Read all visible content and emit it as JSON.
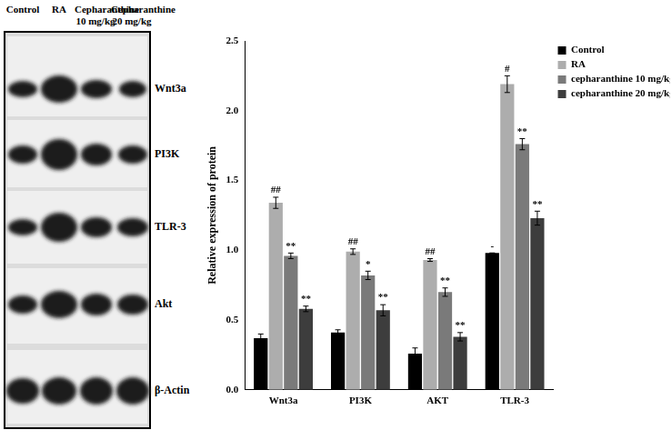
{
  "blot": {
    "lanes": [
      "Control",
      "RA",
      "Cepharanthine 10 mg/kg",
      "Cepharanthine 20 mg/kg"
    ],
    "rows": [
      "Wnt3a",
      "PI3K",
      "TLR-3",
      "Akt",
      "β-Actin"
    ]
  },
  "chart_data": {
    "type": "bar",
    "y_label": "Relative expression of protein",
    "categories": [
      "Wnt3a",
      "PI3K",
      "AKT",
      "TLR-3"
    ],
    "series": [
      {
        "name": "Control",
        "color": "#000000",
        "values": [
          0.37,
          0.41,
          0.26,
          0.98
        ],
        "errors": [
          0.03,
          0.02,
          0.04,
          0.0
        ],
        "significance": [
          null,
          null,
          null,
          "-"
        ]
      },
      {
        "name": "RA",
        "color": "#adadad",
        "values": [
          1.34,
          0.99,
          0.93,
          2.19
        ],
        "errors": [
          0.04,
          0.02,
          0.01,
          0.06
        ],
        "significance": [
          "##",
          "##",
          "##",
          "#"
        ]
      },
      {
        "name": "cepharanthine 10 mg/kg",
        "color": "#7a7a7a",
        "values": [
          0.96,
          0.82,
          0.7,
          1.76
        ],
        "errors": [
          0.02,
          0.03,
          0.03,
          0.04
        ],
        "significance": [
          "**",
          "*",
          "**",
          "**"
        ]
      },
      {
        "name": "cepharanthine 20 mg/kg",
        "color": "#3d3d3d",
        "values": [
          0.58,
          0.57,
          0.38,
          1.23
        ],
        "errors": [
          0.02,
          0.04,
          0.03,
          0.05
        ],
        "significance": [
          "**",
          "**",
          "**",
          "**"
        ]
      }
    ],
    "ylim": [
      0,
      2.5
    ],
    "yticks": [
      {
        "value": 0,
        "label": "0.0"
      },
      {
        "value": 0.5,
        "label": "0.5"
      },
      {
        "value": 1,
        "label": "1.0"
      },
      {
        "value": 1.5,
        "label": "1.5"
      },
      {
        "value": 2,
        "label": "2.0"
      },
      {
        "value": 2.5,
        "label": "2.5"
      }
    ],
    "grid": false,
    "legend": "right"
  }
}
